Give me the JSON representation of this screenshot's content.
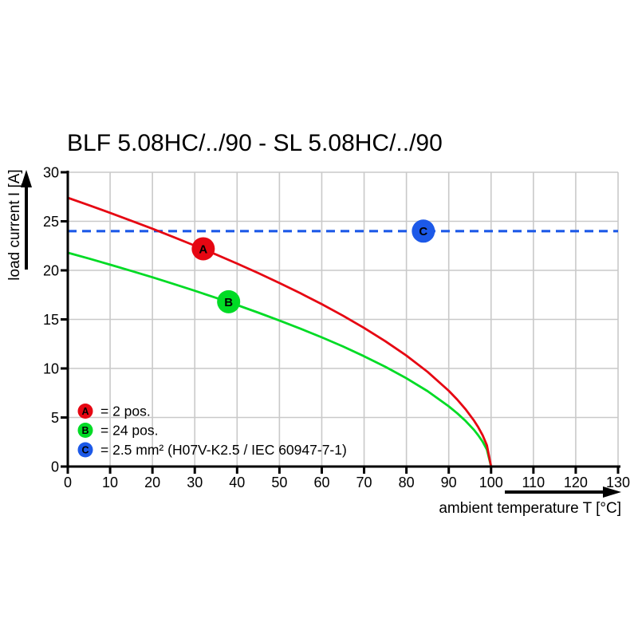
{
  "page": {
    "background": "#ffffff"
  },
  "chart_data": {
    "type": "line",
    "title": "BLF 5.08HC/../90 - SL 5.08HC/../90",
    "xlabel": "ambient temperature T [°C]",
    "ylabel": "load current I [A]",
    "xlim": [
      0,
      130
    ],
    "ylim": [
      0,
      30
    ],
    "xticks": [
      0,
      10,
      20,
      30,
      40,
      50,
      60,
      70,
      80,
      90,
      100,
      110,
      120,
      130
    ],
    "yticks": [
      0,
      5,
      10,
      15,
      20,
      25,
      30
    ],
    "grid": true,
    "legend_position": "inside-bottom-left",
    "colors": {
      "grid": "#c9c9c9",
      "axis": "#000000",
      "title": "#000000"
    },
    "series": [
      {
        "id": "A",
        "legend_label": "= 2 pos.",
        "color": "#e60612",
        "line_style": "solid",
        "x": [
          0,
          5,
          10,
          15,
          20,
          25,
          30,
          35,
          40,
          45,
          50,
          55,
          60,
          65,
          70,
          75,
          80,
          85,
          90,
          92,
          94,
          96,
          97,
          98,
          99,
          100
        ],
        "y": [
          27.4,
          26.64,
          25.86,
          25.06,
          24.24,
          23.39,
          22.52,
          21.62,
          20.69,
          19.72,
          18.71,
          17.66,
          16.55,
          15.38,
          14.13,
          12.78,
          11.31,
          9.65,
          7.72,
          6.83,
          5.83,
          4.67,
          3.99,
          3.19,
          2.17,
          0
        ],
        "marker": {
          "letter": "A",
          "x": 32,
          "y": 22.2,
          "fill": "#e60612"
        }
      },
      {
        "id": "B",
        "legend_label": "= 24 pos.",
        "color": "#00db25",
        "line_style": "solid",
        "x": [
          0,
          5,
          10,
          15,
          20,
          25,
          30,
          35,
          40,
          45,
          50,
          55,
          60,
          65,
          70,
          75,
          80,
          85,
          90,
          92,
          94,
          96,
          97,
          98,
          99,
          100
        ],
        "y": [
          21.8,
          21.2,
          20.58,
          19.94,
          19.29,
          18.61,
          17.92,
          17.2,
          16.46,
          15.69,
          14.89,
          14.05,
          13.17,
          12.24,
          11.24,
          10.17,
          9.0,
          7.68,
          6.14,
          5.43,
          4.64,
          3.72,
          3.17,
          2.54,
          1.73,
          0
        ],
        "marker": {
          "letter": "B",
          "x": 38,
          "y": 16.8,
          "fill": "#00db25"
        }
      },
      {
        "id": "C",
        "legend_label": "= 2.5 mm² (H07V-K2.5 / IEC 60947-7-1)",
        "color": "#1c59e8",
        "line_style": "dashed",
        "x": [
          0,
          130
        ],
        "y": [
          24,
          24
        ],
        "marker": {
          "letter": "C",
          "x": 84,
          "y": 24,
          "fill": "#1c59e8"
        }
      }
    ]
  }
}
